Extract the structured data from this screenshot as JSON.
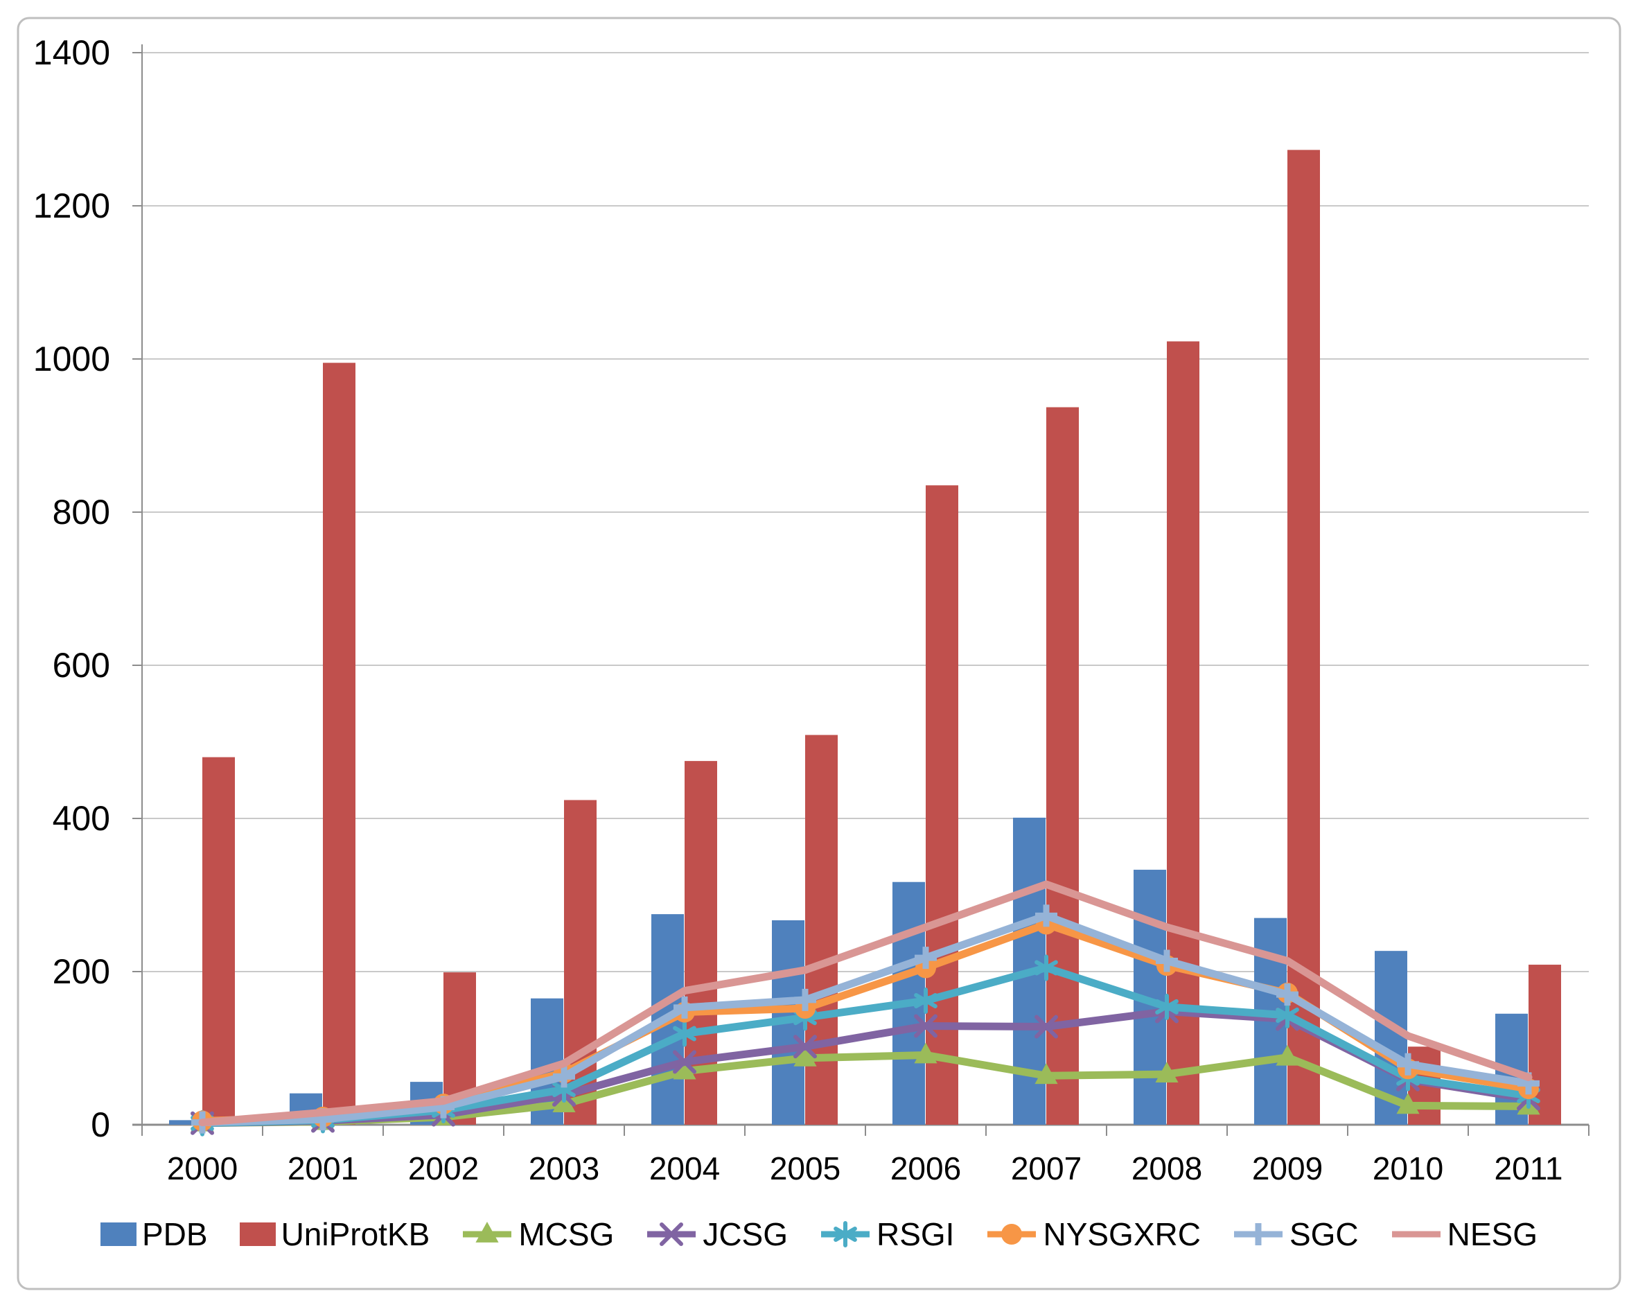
{
  "chart_data": {
    "type": "bar+line",
    "title": "",
    "xlabel": "",
    "ylabel": "",
    "categories": [
      "2000",
      "2001",
      "2002",
      "2003",
      "2004",
      "2005",
      "2006",
      "2007",
      "2008",
      "2009",
      "2010",
      "2011"
    ],
    "ylim": [
      0,
      1400
    ],
    "yticks": [
      0,
      200,
      400,
      600,
      800,
      1000,
      1200,
      1400
    ],
    "grid": true,
    "legend_position": "bottom",
    "series": [
      {
        "name": "PDB",
        "type": "bar",
        "marker": "square",
        "color": "#4F81BD",
        "values": [
          6,
          41,
          56,
          165,
          275,
          267,
          317,
          401,
          333,
          270,
          227,
          145
        ]
      },
      {
        "name": "UniProtKB",
        "type": "bar",
        "marker": "square",
        "color": "#C0504D",
        "values": [
          480,
          995,
          199,
          424,
          475,
          509,
          835,
          937,
          1023,
          1273,
          102,
          209
        ]
      },
      {
        "name": "MCSG",
        "type": "line",
        "marker": "triangle",
        "color": "#9BBB59",
        "values": [
          2,
          4,
          10,
          27,
          70,
          87,
          91,
          64,
          66,
          88,
          25,
          24
        ]
      },
      {
        "name": "JCSG",
        "type": "line",
        "marker": "x",
        "color": "#8064A2",
        "values": [
          2,
          5,
          13,
          39,
          82,
          102,
          129,
          128,
          148,
          138,
          59,
          34
        ]
      },
      {
        "name": "RSGI",
        "type": "line",
        "marker": "asterisk",
        "color": "#4BACC6",
        "values": [
          2,
          6,
          19,
          46,
          119,
          140,
          162,
          205,
          154,
          143,
          61,
          38
        ]
      },
      {
        "name": "NYSGXRC",
        "type": "line",
        "marker": "circle",
        "color": "#F79646",
        "values": [
          5,
          10,
          27,
          68,
          147,
          152,
          205,
          262,
          208,
          172,
          73,
          47
        ]
      },
      {
        "name": "SGC",
        "type": "line",
        "marker": "plus",
        "color": "#95B3D7",
        "values": [
          3,
          7,
          23,
          63,
          153,
          163,
          218,
          273,
          214,
          170,
          79,
          54
        ]
      },
      {
        "name": "NESG",
        "type": "line",
        "marker": "none",
        "color": "#D99694",
        "values": [
          3,
          16,
          31,
          80,
          175,
          202,
          258,
          314,
          258,
          214,
          116,
          62
        ]
      }
    ],
    "colors": {
      "axis_line": "#8C8C8C",
      "gridline": "#C9C9C9",
      "frame_border": "#BFBFBF",
      "tick_text": "#000000"
    }
  }
}
